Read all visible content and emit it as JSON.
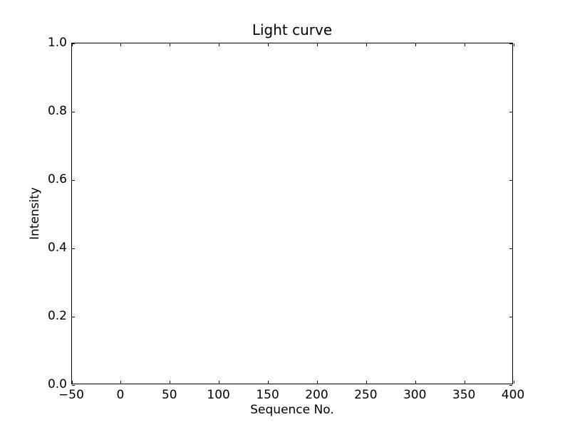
{
  "figure": {
    "background": "#ffffff",
    "frame_color": "#000000",
    "text_color": "#000000"
  },
  "chart_data": {
    "type": "line",
    "title": "Light curve",
    "xlabel": "Sequence No.",
    "ylabel": "Intensity",
    "xlim": [
      -50,
      400
    ],
    "ylim": [
      0.0,
      1.0
    ],
    "xticks": [
      -50,
      0,
      50,
      100,
      150,
      200,
      250,
      300,
      350,
      400
    ],
    "xtick_labels": [
      "−50",
      "0",
      "50",
      "100",
      "150",
      "200",
      "250",
      "300",
      "350",
      "400"
    ],
    "yticks": [
      0.0,
      0.2,
      0.4,
      0.6,
      0.8,
      1.0
    ],
    "ytick_labels": [
      "0.0",
      "0.2",
      "0.4",
      "0.6",
      "0.8",
      "1.0"
    ],
    "grid": false,
    "legend": null,
    "series": []
  }
}
